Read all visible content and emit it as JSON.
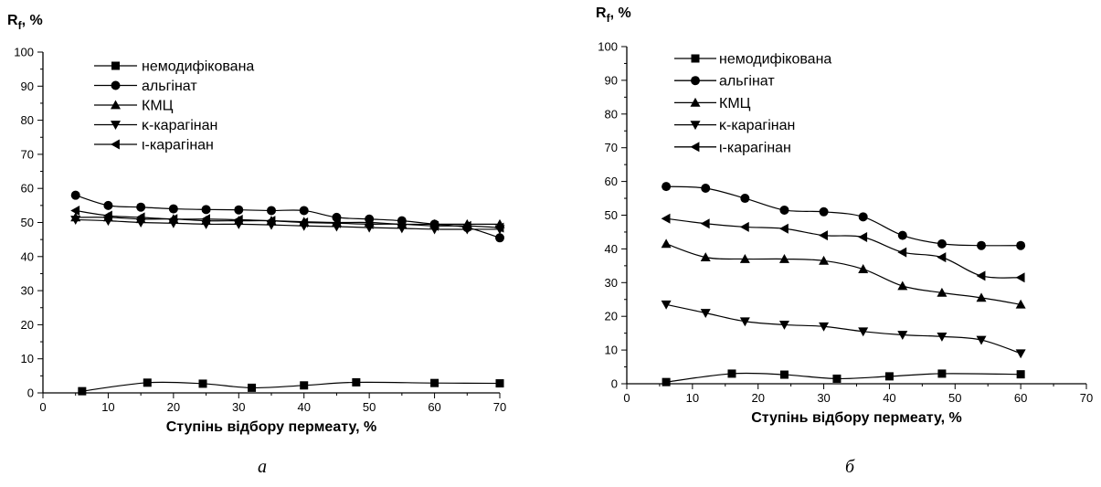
{
  "chart_data": [
    {
      "type": "line",
      "panel_label": "а",
      "ylabel_main": "R",
      "ylabel_sub": "f",
      "ylabel_suffix": ", %",
      "xlabel": "Ступінь відбору пермеату, %",
      "xlim": [
        0,
        70
      ],
      "ylim": [
        0,
        100
      ],
      "xticks": [
        0,
        10,
        20,
        30,
        40,
        50,
        60,
        70
      ],
      "yticks": [
        0,
        10,
        20,
        30,
        40,
        50,
        60,
        70,
        80,
        90,
        100
      ],
      "legend_position": "top-left",
      "series": [
        {
          "name": "немодифікована",
          "marker": "square",
          "points": [
            [
              6,
              0.5
            ],
            [
              16,
              3
            ],
            [
              24.5,
              2.7
            ],
            [
              32,
              1.5
            ],
            [
              40,
              2.2
            ],
            [
              48,
              3.1
            ],
            [
              60,
              2.9
            ],
            [
              70,
              2.8
            ]
          ]
        },
        {
          "name": "альгінат",
          "marker": "circle",
          "points": [
            [
              5,
              58
            ],
            [
              10,
              55
            ],
            [
              15,
              54.5
            ],
            [
              20,
              54
            ],
            [
              25,
              53.8
            ],
            [
              30,
              53.7
            ],
            [
              35,
              53.5
            ],
            [
              40,
              53.5
            ],
            [
              45,
              51.5
            ],
            [
              50,
              51
            ],
            [
              55,
              50.5
            ],
            [
              60,
              49.5
            ],
            [
              65,
              48.5
            ],
            [
              70,
              45.5
            ]
          ]
        },
        {
          "name": "КМЦ",
          "marker": "triangle-up",
          "points": [
            [
              5,
              51.5
            ],
            [
              10,
              51.5
            ],
            [
              15,
              51
            ],
            [
              20,
              51
            ],
            [
              25,
              50.5
            ],
            [
              30,
              50.5
            ],
            [
              35,
              50.5
            ],
            [
              40,
              50.2
            ],
            [
              45,
              50
            ],
            [
              50,
              50
            ],
            [
              55,
              49.5
            ],
            [
              60,
              49.5
            ],
            [
              65,
              49.5
            ],
            [
              70,
              49.5
            ]
          ]
        },
        {
          "name": "κ-карагінан",
          "marker": "triangle-down",
          "points": [
            [
              5,
              50.8
            ],
            [
              10,
              50.5
            ],
            [
              15,
              50
            ],
            [
              20,
              49.8
            ],
            [
              25,
              49.5
            ],
            [
              30,
              49.5
            ],
            [
              35,
              49.3
            ],
            [
              40,
              49
            ],
            [
              45,
              48.8
            ],
            [
              50,
              48.5
            ],
            [
              55,
              48.3
            ],
            [
              60,
              48
            ],
            [
              65,
              48
            ],
            [
              70,
              48
            ]
          ]
        },
        {
          "name": "ι-карагінан",
          "marker": "triangle-left",
          "points": [
            [
              5,
              53.5
            ],
            [
              10,
              52
            ],
            [
              15,
              51.5
            ],
            [
              20,
              51
            ],
            [
              25,
              51
            ],
            [
              30,
              50.8
            ],
            [
              35,
              50.5
            ],
            [
              40,
              50
            ],
            [
              45,
              49.8
            ],
            [
              50,
              49.5
            ],
            [
              55,
              49.5
            ],
            [
              60,
              49
            ],
            [
              65,
              49
            ],
            [
              70,
              48.5
            ]
          ]
        }
      ]
    },
    {
      "type": "line",
      "panel_label": "б",
      "ylabel_main": "R",
      "ylabel_sub": "f",
      "ylabel_suffix": ", %",
      "xlabel": "Ступінь відбору пермеату, %",
      "xlim": [
        0,
        70
      ],
      "ylim": [
        0,
        100
      ],
      "xticks": [
        0,
        10,
        20,
        30,
        40,
        50,
        60,
        70
      ],
      "yticks": [
        0,
        10,
        20,
        30,
        40,
        50,
        60,
        70,
        80,
        90,
        100
      ],
      "legend_position": "top-left",
      "series": [
        {
          "name": "немодифікована",
          "marker": "square",
          "points": [
            [
              6,
              0.5
            ],
            [
              16,
              3
            ],
            [
              24,
              2.7
            ],
            [
              32,
              1.5
            ],
            [
              40,
              2.2
            ],
            [
              48,
              3
            ],
            [
              60,
              2.8
            ]
          ]
        },
        {
          "name": "альгінат",
          "marker": "circle",
          "points": [
            [
              6,
              58.5
            ],
            [
              12,
              58
            ],
            [
              18,
              55
            ],
            [
              24,
              51.5
            ],
            [
              30,
              51
            ],
            [
              36,
              49.5
            ],
            [
              42,
              44
            ],
            [
              48,
              41.5
            ],
            [
              54,
              41
            ],
            [
              60,
              41
            ]
          ]
        },
        {
          "name": "КМЦ",
          "marker": "triangle-up",
          "points": [
            [
              6,
              41.5
            ],
            [
              12,
              37.5
            ],
            [
              18,
              37
            ],
            [
              24,
              37
            ],
            [
              30,
              36.5
            ],
            [
              36,
              34
            ],
            [
              42,
              29
            ],
            [
              48,
              27
            ],
            [
              54,
              25.5
            ],
            [
              60,
              23.5
            ]
          ]
        },
        {
          "name": "κ-карагінан",
          "marker": "triangle-down",
          "points": [
            [
              6,
              23.5
            ],
            [
              12,
              21
            ],
            [
              18,
              18.5
            ],
            [
              24,
              17.5
            ],
            [
              30,
              17
            ],
            [
              36,
              15.5
            ],
            [
              42,
              14.5
            ],
            [
              48,
              14
            ],
            [
              54,
              13
            ],
            [
              60,
              9
            ]
          ]
        },
        {
          "name": "ι-карагінан",
          "marker": "triangle-left",
          "points": [
            [
              6,
              49
            ],
            [
              12,
              47.5
            ],
            [
              18,
              46.5
            ],
            [
              24,
              46
            ],
            [
              30,
              44
            ],
            [
              36,
              43.5
            ],
            [
              42,
              39
            ],
            [
              48,
              37.5
            ],
            [
              54,
              32
            ],
            [
              60,
              31.5
            ]
          ]
        }
      ]
    }
  ]
}
